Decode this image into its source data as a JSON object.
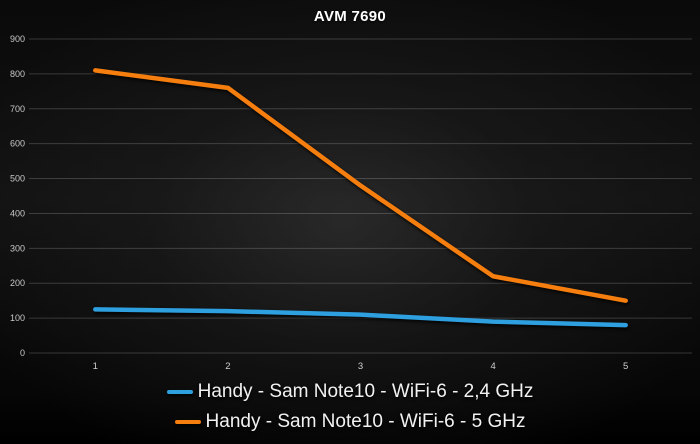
{
  "chart_data": {
    "type": "line",
    "title": "AVM 7690",
    "x": [
      "1",
      "2",
      "3",
      "4",
      "5"
    ],
    "series": [
      {
        "name": "Handy - Sam Note10 - WiFi-6 - 2,4 GHz",
        "color": "#2e9fdf",
        "values": [
          125,
          120,
          110,
          90,
          80
        ]
      },
      {
        "name": "Handy - Sam Note10 - WiFi-6 - 5 GHz",
        "color": "#f57e0f",
        "values": [
          810,
          760,
          480,
          220,
          150
        ]
      }
    ],
    "xlabel": "",
    "ylabel": "",
    "ylim": [
      0,
      900
    ],
    "ytick_step": 100,
    "grid": true,
    "legend_position": "bottom",
    "background": "dark-radial-glow"
  },
  "colors": {
    "grid": "rgba(255,255,255,0.18)",
    "axis_text": "#c8c8c8",
    "title_text": "#ffffff",
    "legend_text": "#f2f2f2"
  }
}
